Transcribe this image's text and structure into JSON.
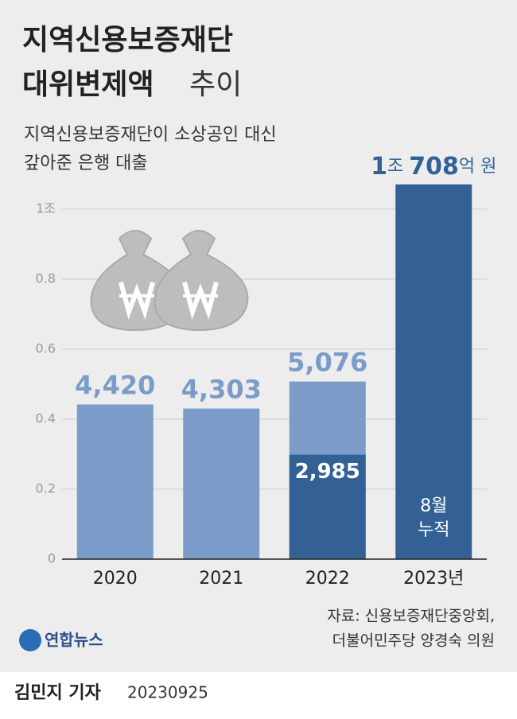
{
  "title_main": "지역신용보증재단",
  "title_second": "대위변제액",
  "title_suffix": "추이",
  "subtitle_lines": [
    "지역신용보증재단이 소상공인 대신",
    "갚아준 은행 대출"
  ],
  "chart_data": {
    "type": "bar",
    "categories": [
      "2020",
      "2021",
      "2022",
      "2023년"
    ],
    "series": [
      {
        "color": "#7b9cc8",
        "values": [
          0.442,
          0.4303,
          0.5076,
          null
        ],
        "value_labels": [
          "4,420",
          "4,303",
          "5,076",
          null
        ]
      },
      {
        "color": "#336196",
        "values": [
          null,
          null,
          0.2985,
          1.0708
        ],
        "value_labels": [
          null,
          null,
          "2,985",
          "1조 708억 원"
        ]
      }
    ],
    "bar_annotation": [
      "8월",
      "누적"
    ],
    "ylim": [
      0,
      1.1
    ],
    "yticks": [
      0,
      0.2,
      0.4,
      0.6,
      0.8,
      {
        "value": 1,
        "label": "1조"
      }
    ],
    "grid": true
  },
  "source_lines": [
    "자료: 신용보증재단중앙회,",
    "더불어민주당 양경숙 의원"
  ],
  "logo": "연합뉴스",
  "footer": {
    "author": "김민지 기자",
    "date": "20230925"
  }
}
